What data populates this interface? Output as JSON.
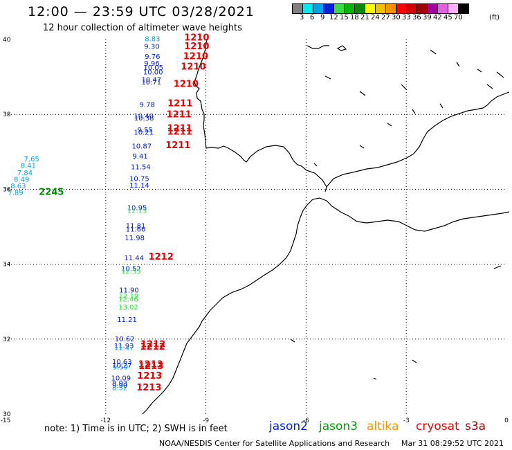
{
  "header": {
    "title": "12:00 — 23:59 UTC 03/28/2021",
    "subtitle": "12 hour collection of altimeter wave heights"
  },
  "legend": {
    "unit": "(ft)",
    "bins": [
      {
        "label": "3",
        "color": "#808080"
      },
      {
        "label": "6",
        "color": "#00e8f0"
      },
      {
        "label": "9",
        "color": "#00a0f0"
      },
      {
        "label": "12",
        "color": "#0020e0"
      },
      {
        "label": "15",
        "color": "#30e040"
      },
      {
        "label": "18",
        "color": "#00b800"
      },
      {
        "label": "21",
        "color": "#008c00"
      },
      {
        "label": "24",
        "color": "#ffff00"
      },
      {
        "label": "27",
        "color": "#f0c000"
      },
      {
        "label": "30",
        "color": "#ff9000"
      },
      {
        "label": "33",
        "color": "#ff0000"
      },
      {
        "label": "36",
        "color": "#d00000"
      },
      {
        "label": "39",
        "color": "#a00000"
      },
      {
        "label": "42",
        "color": "#a0009c"
      },
      {
        "label": "45",
        "color": "#e060e0"
      },
      {
        "label": "70",
        "color": "#ffb0ff"
      },
      {
        "label": "",
        "color": "#000000"
      }
    ]
  },
  "axes": {
    "lat_labels": [
      "40",
      "38",
      "36",
      "34",
      "32",
      "30"
    ],
    "lon_labels": [
      "-15",
      "-12",
      "-9",
      "-6",
      "-3",
      "0"
    ],
    "grid": "dotted"
  },
  "observations": [
    {
      "text": "8.83",
      "lon": -10.83,
      "lat": 39.95,
      "color": "#00a0f0"
    },
    {
      "text": "9.30",
      "lon": -10.85,
      "lat": 39.75,
      "color": "#0020e0"
    },
    {
      "text": "9.76",
      "lon": -10.83,
      "lat": 39.48,
      "color": "#0020e0"
    },
    {
      "text": "9.96",
      "lon": -10.85,
      "lat": 39.3,
      "color": "#0020e0"
    },
    {
      "text": "10.05",
      "lon": -10.87,
      "lat": 39.19,
      "color": "#0020e0"
    },
    {
      "text": "10.00",
      "lon": -10.88,
      "lat": 39.07,
      "color": "#0020e0"
    },
    {
      "text": "10.47",
      "lon": -10.93,
      "lat": 38.86,
      "color": "#0020e0"
    },
    {
      "text": "10.71",
      "lon": -10.93,
      "lat": 38.8,
      "color": "#0020e0"
    },
    {
      "text": "9.78",
      "lon": -10.99,
      "lat": 38.2,
      "color": "#0020e0"
    },
    {
      "text": "10.40",
      "lon": -11.16,
      "lat": 37.89,
      "color": "#0020e0"
    },
    {
      "text": "10.38",
      "lon": -11.15,
      "lat": 37.84,
      "color": "#0020e0"
    },
    {
      "text": "9.55",
      "lon": -11.05,
      "lat": 37.52,
      "color": "#0020e0"
    },
    {
      "text": "10.21",
      "lon": -11.16,
      "lat": 37.46,
      "color": "#0020e0"
    },
    {
      "text": "10.87",
      "lon": -11.22,
      "lat": 37.09,
      "color": "#0020e0"
    },
    {
      "text": "9.41",
      "lon": -11.2,
      "lat": 36.82,
      "color": "#0020e0"
    },
    {
      "text": "11.54",
      "lon": -11.25,
      "lat": 36.53,
      "color": "#0020e0"
    },
    {
      "text": "10.75",
      "lon": -11.29,
      "lat": 36.22,
      "color": "#0020e0"
    },
    {
      "text": "11.14",
      "lon": -11.29,
      "lat": 36.04,
      "color": "#0020e0"
    },
    {
      "text": "10.95",
      "lon": -11.36,
      "lat": 35.44,
      "color": "#0020e0"
    },
    {
      "text": "12.13",
      "lon": -11.36,
      "lat": 35.37,
      "color": "#30e040"
    },
    {
      "text": "11.81",
      "lon": -11.4,
      "lat": 34.96,
      "color": "#0020e0"
    },
    {
      "text": "11.66",
      "lon": -11.4,
      "lat": 34.87,
      "color": "#0020e0"
    },
    {
      "text": "11.98",
      "lon": -11.43,
      "lat": 34.64,
      "color": "#0020e0"
    },
    {
      "text": "11.44",
      "lon": -11.45,
      "lat": 34.1,
      "color": "#0020e0"
    },
    {
      "text": "10.52",
      "lon": -11.54,
      "lat": 33.82,
      "color": "#0020e0"
    },
    {
      "text": "12.55",
      "lon": -11.54,
      "lat": 33.74,
      "color": "#30e040"
    },
    {
      "text": "11.90",
      "lon": -11.6,
      "lat": 33.24,
      "color": "#0020e0"
    },
    {
      "text": "12.19",
      "lon": -11.61,
      "lat": 33.09,
      "color": "#30e040"
    },
    {
      "text": "12.46",
      "lon": -11.62,
      "lat": 33.0,
      "color": "#30e040"
    },
    {
      "text": "13.02",
      "lon": -11.62,
      "lat": 32.79,
      "color": "#30e040"
    },
    {
      "text": "11.21",
      "lon": -11.66,
      "lat": 32.46,
      "color": "#0020e0"
    },
    {
      "text": "10.62",
      "lon": -11.73,
      "lat": 31.94,
      "color": "#0020e0"
    },
    {
      "text": "11.93",
      "lon": -11.75,
      "lat": 31.76,
      "color": "#0020e0"
    },
    {
      "text": "11.47",
      "lon": -11.75,
      "lat": 31.7,
      "color": "#00a0f0"
    },
    {
      "text": "10.63",
      "lon": -11.81,
      "lat": 31.33,
      "color": "#0020e0"
    },
    {
      "text": "10.27",
      "lon": -11.81,
      "lat": 31.24,
      "color": "#0020e0"
    },
    {
      "text": "9.59",
      "lon": -11.79,
      "lat": 31.19,
      "color": "#00a0f0"
    },
    {
      "text": "10.09",
      "lon": -11.84,
      "lat": 30.9,
      "color": "#0020e0"
    },
    {
      "text": "8.93",
      "lon": -11.81,
      "lat": 30.76,
      "color": "#0020e0"
    },
    {
      "text": "9.90",
      "lon": -11.81,
      "lat": 30.7,
      "color": "#0020e0"
    },
    {
      "text": "8.52",
      "lon": -11.81,
      "lat": 30.64,
      "color": "#00a0f0"
    },
    {
      "text": "7.65",
      "lon": -14.45,
      "lat": 36.75,
      "color": "#00a0f0"
    },
    {
      "text": "8.41",
      "lon": -14.55,
      "lat": 36.57,
      "color": "#00a0f0"
    },
    {
      "text": "7.84",
      "lon": -14.65,
      "lat": 36.38,
      "color": "#00a0f0"
    },
    {
      "text": "8.49",
      "lon": -14.75,
      "lat": 36.2,
      "color": "#00a0f0"
    },
    {
      "text": "8.63",
      "lon": -14.85,
      "lat": 36.03,
      "color": "#00a0f0"
    },
    {
      "text": "7.89",
      "lon": -14.93,
      "lat": 35.85,
      "color": "#00a0f0"
    }
  ],
  "pass_times": [
    {
      "text": "1210",
      "lon": -9.65,
      "lat": 39.97,
      "color": "#ee0000"
    },
    {
      "text": "1210",
      "lon": -9.65,
      "lat": 39.74,
      "color": "#ee0000"
    },
    {
      "text": "1210",
      "lon": -9.68,
      "lat": 39.47,
      "color": "#ee0000"
    },
    {
      "text": "1210",
      "lon": -9.75,
      "lat": 39.2,
      "color": "#ee0000"
    },
    {
      "text": "1210",
      "lon": -9.97,
      "lat": 38.73,
      "color": "#ee0000"
    },
    {
      "text": "1211",
      "lon": -10.15,
      "lat": 38.22,
      "color": "#ee0000"
    },
    {
      "text": "1211",
      "lon": -10.18,
      "lat": 37.92,
      "color": "#ee0000"
    },
    {
      "text": "1211",
      "lon": -10.16,
      "lat": 37.55,
      "color": "#ee0000"
    },
    {
      "text": "1211",
      "lon": -10.16,
      "lat": 37.46,
      "color": "#ee0000"
    },
    {
      "text": "1211",
      "lon": -10.21,
      "lat": 37.1,
      "color": "#ee0000"
    },
    {
      "text": "2245",
      "lon": -14.0,
      "lat": 35.85,
      "color": "#008c00"
    },
    {
      "text": "1212",
      "lon": -10.72,
      "lat": 34.12,
      "color": "#ee0000"
    },
    {
      "text": "1212",
      "lon": -10.96,
      "lat": 31.78,
      "color": "#ee0000"
    },
    {
      "text": "1212",
      "lon": -10.97,
      "lat": 31.72,
      "color": "#ee0000"
    },
    {
      "text": "1213",
      "lon": -11.03,
      "lat": 31.25,
      "color": "#ee0000"
    },
    {
      "text": "1213",
      "lon": -11.02,
      "lat": 31.2,
      "color": "#ee0000"
    },
    {
      "text": "1213",
      "lon": -11.06,
      "lat": 30.94,
      "color": "#ee0000"
    },
    {
      "text": "1213",
      "lon": -11.08,
      "lat": 30.63,
      "color": "#ee0000"
    }
  ],
  "footer": {
    "note": "note:  1) Time is in UTC;  2) SWH is in feet",
    "satellites": [
      {
        "name": "jason2",
        "color": "#0020e0"
      },
      {
        "name": "jason3",
        "color": "#00a000"
      },
      {
        "name": "altika",
        "color": "#ff9000"
      },
      {
        "name": "cryosat",
        "color": "#ee0000"
      },
      {
        "name": "s3a",
        "color": "#a00000"
      }
    ],
    "credit": "NOAA/NESDIS Center for Satellite Applications and Research",
    "timestamp": "Mar 31 08:29:52 UTC 2021"
  }
}
